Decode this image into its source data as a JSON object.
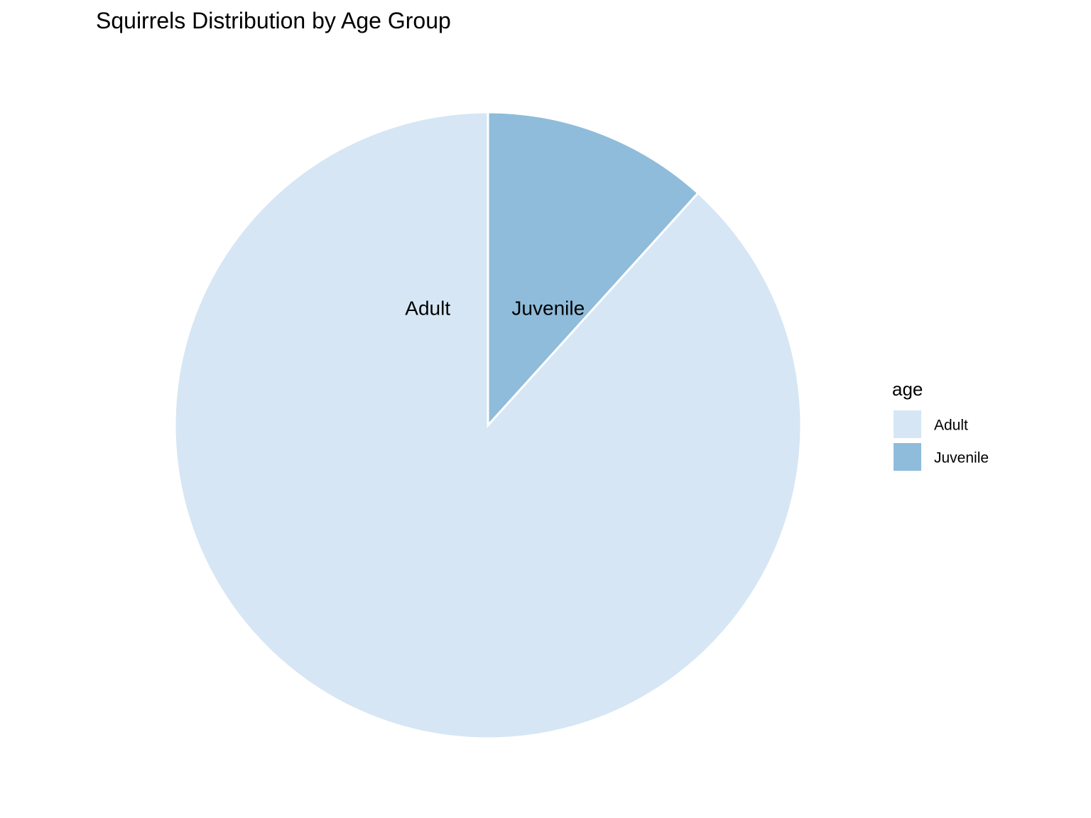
{
  "chart_data": {
    "type": "pie",
    "title": "Squirrels Distribution by Age Group",
    "legend": {
      "title": "age",
      "position": "right"
    },
    "slices": [
      {
        "label": "Adult",
        "value": 88.3,
        "color": "#D6E6F4"
      },
      {
        "label": "Juvenile",
        "value": 11.7,
        "color": "#8FBCDA"
      }
    ],
    "slice_border_color": "#FFFFFF",
    "start_angle": "12 o'clock",
    "direction": "counterclockwise from Juvenile, Adult fills remainder",
    "grid": false
  }
}
